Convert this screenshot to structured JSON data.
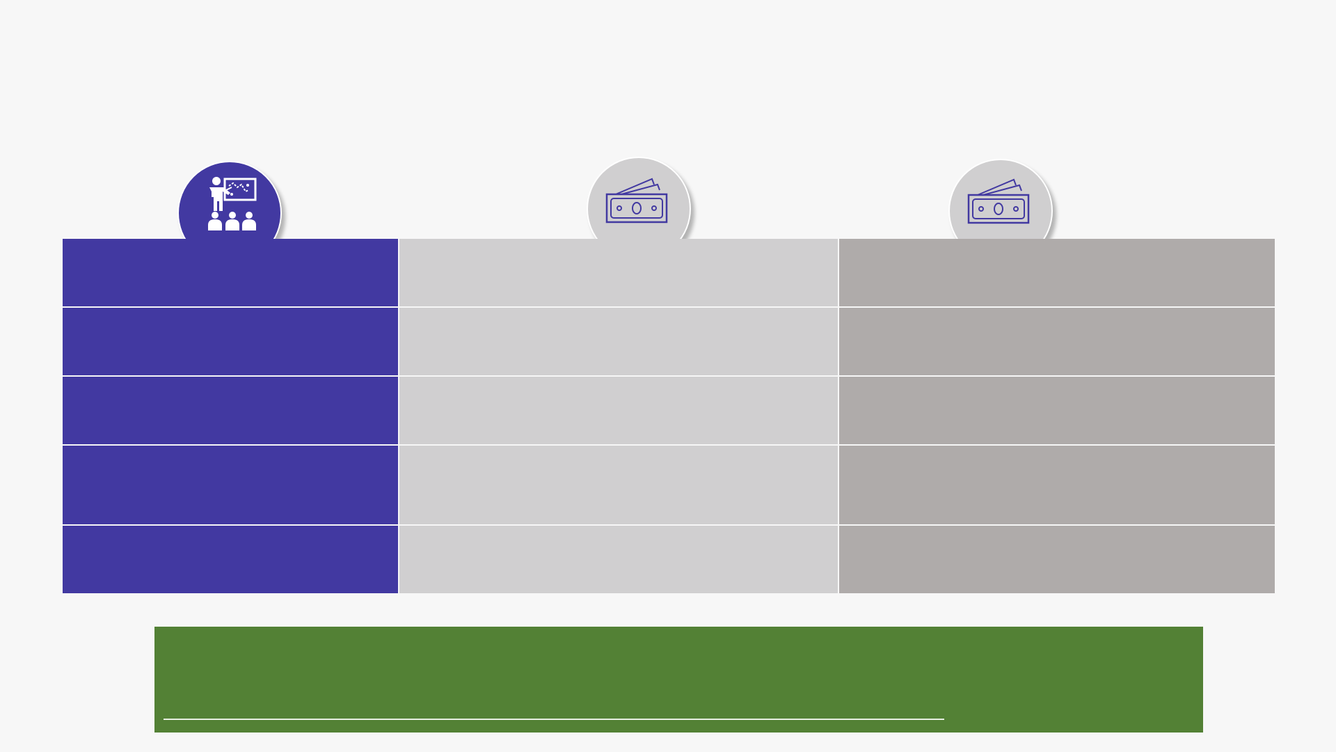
{
  "colors": {
    "primary": "#4239a1",
    "light_gray": "#d0cfd0",
    "dark_gray": "#afabaa",
    "banner_green": "#538135",
    "background": "#f7f7f7"
  },
  "icons": [
    "presentation-teacher-icon",
    "banknotes-icon",
    "banknotes-icon"
  ],
  "table": {
    "rows": [
      [
        "",
        "",
        ""
      ],
      [
        "",
        "",
        ""
      ],
      [
        "",
        "",
        ""
      ],
      [
        "",
        "",
        ""
      ],
      [
        "",
        "",
        ""
      ]
    ]
  },
  "banner": {
    "text": ""
  }
}
